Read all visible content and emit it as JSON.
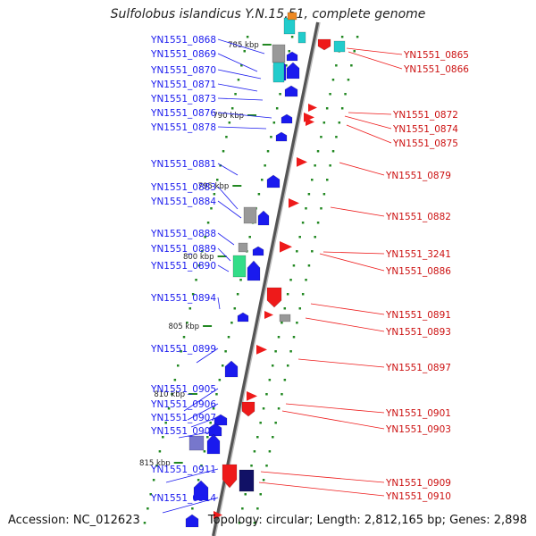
{
  "title": "Sulfolobus islandicus Y.N.15.51, complete genome",
  "footer": {
    "accession": "Accession: NC_012623",
    "topology": "Topology: circular; Length: 2,812,165 bp; Genes: 2,898"
  },
  "colors": {
    "forward": "#1a1aee",
    "reverse": "#ee1a1a",
    "axis": "#888888",
    "tick": "#228822",
    "cyan": "#22cccc",
    "gray": "#999999",
    "navy": "#111166",
    "violet": "#7777cc",
    "green": "#33dd88",
    "orange": "#ee8822"
  },
  "kbp_marks": [
    "785 kbp",
    "790 kbp",
    "795 kbp",
    "800 kbp",
    "805 kbp",
    "810 kbp",
    "815 kbp"
  ],
  "left_labels": [
    "YN1551_0868",
    "YN1551_0869",
    "YN1551_0870",
    "YN1551_0871",
    "YN1551_0873",
    "YN1551_0876",
    "YN1551_0878",
    "YN1551_0881",
    "YN1551_0883",
    "YN1551_0884",
    "YN1551_0888",
    "YN1551_0889",
    "YN1551_0890",
    "YN1551_0894",
    "YN1551_0899",
    "YN1551_0905",
    "YN1551_0906",
    "YN1551_0907",
    "YN1551_0908",
    "YN1551_0911",
    "YN1551_0914"
  ],
  "right_labels": [
    "YN1551_0865",
    "YN1551_0866",
    "YN1551_0872",
    "YN1551_0874",
    "YN1551_0875",
    "YN1551_0879",
    "YN1551_0882",
    "YN1551_3241",
    "YN1551_0886",
    "YN1551_0891",
    "YN1551_0893",
    "YN1551_0897",
    "YN1551_0901",
    "YN1551_0903",
    "YN1551_0909",
    "YN1551_0910"
  ]
}
